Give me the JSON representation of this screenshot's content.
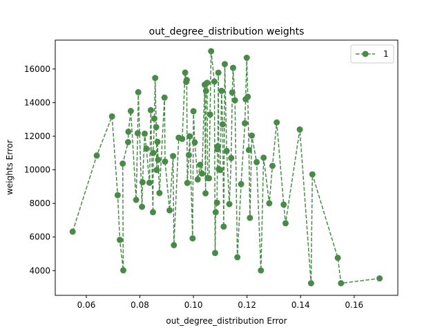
{
  "chart_data": {
    "type": "line",
    "title": "out_degree_distribution weights",
    "xlabel": "out_degree_distribution Error",
    "ylabel": "weights Error",
    "xlim": [
      0.0484,
      0.1763
    ],
    "ylim": [
      2530,
      17720
    ],
    "xticks": [
      0.06,
      0.08,
      0.1,
      0.12,
      0.14,
      0.16
    ],
    "xtick_labels": [
      "0.06",
      "0.08",
      "0.10",
      "0.12",
      "0.14",
      "0.16"
    ],
    "yticks": [
      4000,
      6000,
      8000,
      10000,
      12000,
      14000,
      16000
    ],
    "ytick_labels": [
      "4000",
      "6000",
      "8000",
      "10000",
      "12000",
      "14000",
      "16000"
    ],
    "grid": false,
    "legend_position": "top-right",
    "series": [
      {
        "name": "1",
        "color": "#4a8a48",
        "line_style": "dashed",
        "marker": "circle",
        "x": [
          0.0549,
          0.0639,
          0.0696,
          0.0717,
          0.0725,
          0.0738,
          0.0736,
          0.0756,
          0.0757,
          0.0766,
          0.0786,
          0.0792,
          0.0794,
          0.0808,
          0.081,
          0.0818,
          0.0824,
          0.0836,
          0.0841,
          0.0849,
          0.085,
          0.0854,
          0.0857,
          0.0861,
          0.0863,
          0.0866,
          0.0868,
          0.0873,
          0.0892,
          0.0894,
          0.0911,
          0.0924,
          0.0927,
          0.0945,
          0.0958,
          0.0969,
          0.0973,
          0.0975,
          0.0977,
          0.0983,
          0.0986,
          0.0997,
          0.1,
          0.1005,
          0.1016,
          0.1025,
          0.1032,
          0.1042,
          0.1045,
          0.1047,
          0.1051,
          0.1053,
          0.1058,
          0.1062,
          0.1066,
          0.1078,
          0.1081,
          0.1083,
          0.1088,
          0.109,
          0.1091,
          0.1093,
          0.1095,
          0.11,
          0.1105,
          0.1109,
          0.1113,
          0.1117,
          0.1124,
          0.1134,
          0.1141,
          0.1145,
          0.1148,
          0.1155,
          0.1164,
          0.1178,
          0.1192,
          0.1195,
          0.1199,
          0.1203,
          0.1207,
          0.1211,
          0.1218,
          0.1236,
          0.1252,
          0.1262,
          0.1283,
          0.1295,
          0.1311,
          0.1337,
          0.1344,
          0.1397,
          0.1439,
          0.1444,
          0.1539,
          0.1551,
          0.1695
        ],
        "y": [
          6320,
          10850,
          13180,
          8490,
          5830,
          4020,
          10370,
          11650,
          12270,
          13500,
          8210,
          12180,
          14620,
          7800,
          9260,
          12150,
          11260,
          9230,
          13550,
          7480,
          11000,
          13050,
          15470,
          12540,
          9990,
          11670,
          10600,
          8620,
          14300,
          10490,
          7590,
          10820,
          5520,
          11910,
          11840,
          15790,
          15230,
          15350,
          9220,
          10880,
          12000,
          5920,
          13490,
          11630,
          9430,
          10300,
          9780,
          15070,
          8600,
          14700,
          15180,
          9510,
          9500,
          13290,
          17060,
          15250,
          5050,
          7480,
          8040,
          11220,
          11400,
          15780,
          10040,
          9990,
          14700,
          12710,
          6620,
          16290,
          11120,
          7960,
          10700,
          14600,
          16070,
          14140,
          4800,
          9150,
          12770,
          14200,
          16670,
          14350,
          11180,
          7140,
          12040,
          10460,
          4010,
          10720,
          8010,
          10240,
          12820,
          7930,
          6820,
          12400,
          3250,
          9730,
          4760,
          3250,
          3540
        ]
      }
    ]
  }
}
